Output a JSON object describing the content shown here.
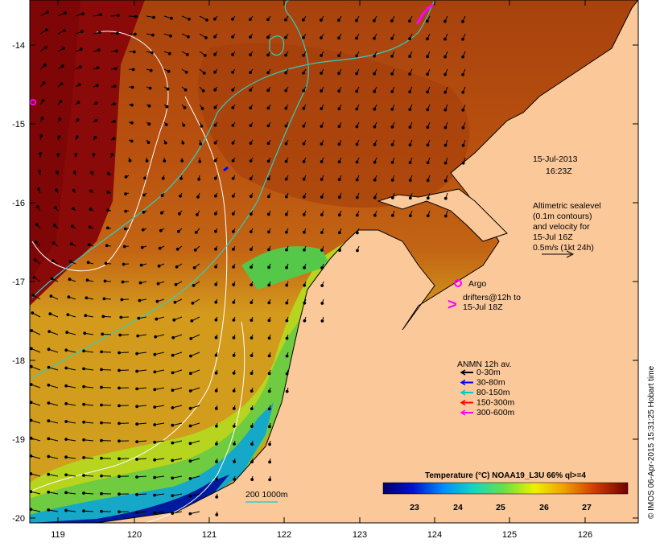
{
  "map": {
    "axes": {
      "lon_ticks": [
        "119",
        "120",
        "121",
        "122",
        "123",
        "124",
        "125",
        "126"
      ],
      "lat_ticks": [
        "-14",
        "-15",
        "-16",
        "-17",
        "-18",
        "-19",
        "-20"
      ]
    },
    "timestamp": {
      "date": "15-Jul-2013",
      "time": "16:23Z"
    },
    "altimetry_note": [
      "Altimetric sealevel",
      "(0.1m contours)",
      "and velocity for",
      "15-Jul 16Z",
      "0.5m/s (1kt 24h)"
    ],
    "argo_label": "Argo",
    "drifters_note": [
      "drifters@12h to",
      "15-Jul 18Z"
    ],
    "drifter_symbol": ">",
    "anmn": {
      "title": "ANMN 12h av.",
      "items": [
        {
          "label": "0-30m",
          "color": "#000000"
        },
        {
          "label": "30-80m",
          "color": "#0000ff"
        },
        {
          "label": "80-150m",
          "color": "#00c8c8"
        },
        {
          "label": "150-300m",
          "color": "#ff0000"
        },
        {
          "label": "300-600m",
          "color": "#ff00ff"
        }
      ]
    },
    "isobath_label": "200  1000m",
    "colorbar": {
      "title": "Temperature (°C) NOAA19_L3U 66% ql>=4",
      "labels": [
        "23",
        "24",
        "25",
        "26",
        "27"
      ]
    },
    "credit": "© IMOS 06-Apr-2015 15:31:25 Hobart time",
    "colors": {
      "land": "#fbc89a",
      "warm_water": "#b54a0c",
      "hot_water": "#8a0a0a",
      "contour": "#2fcfbf"
    }
  }
}
